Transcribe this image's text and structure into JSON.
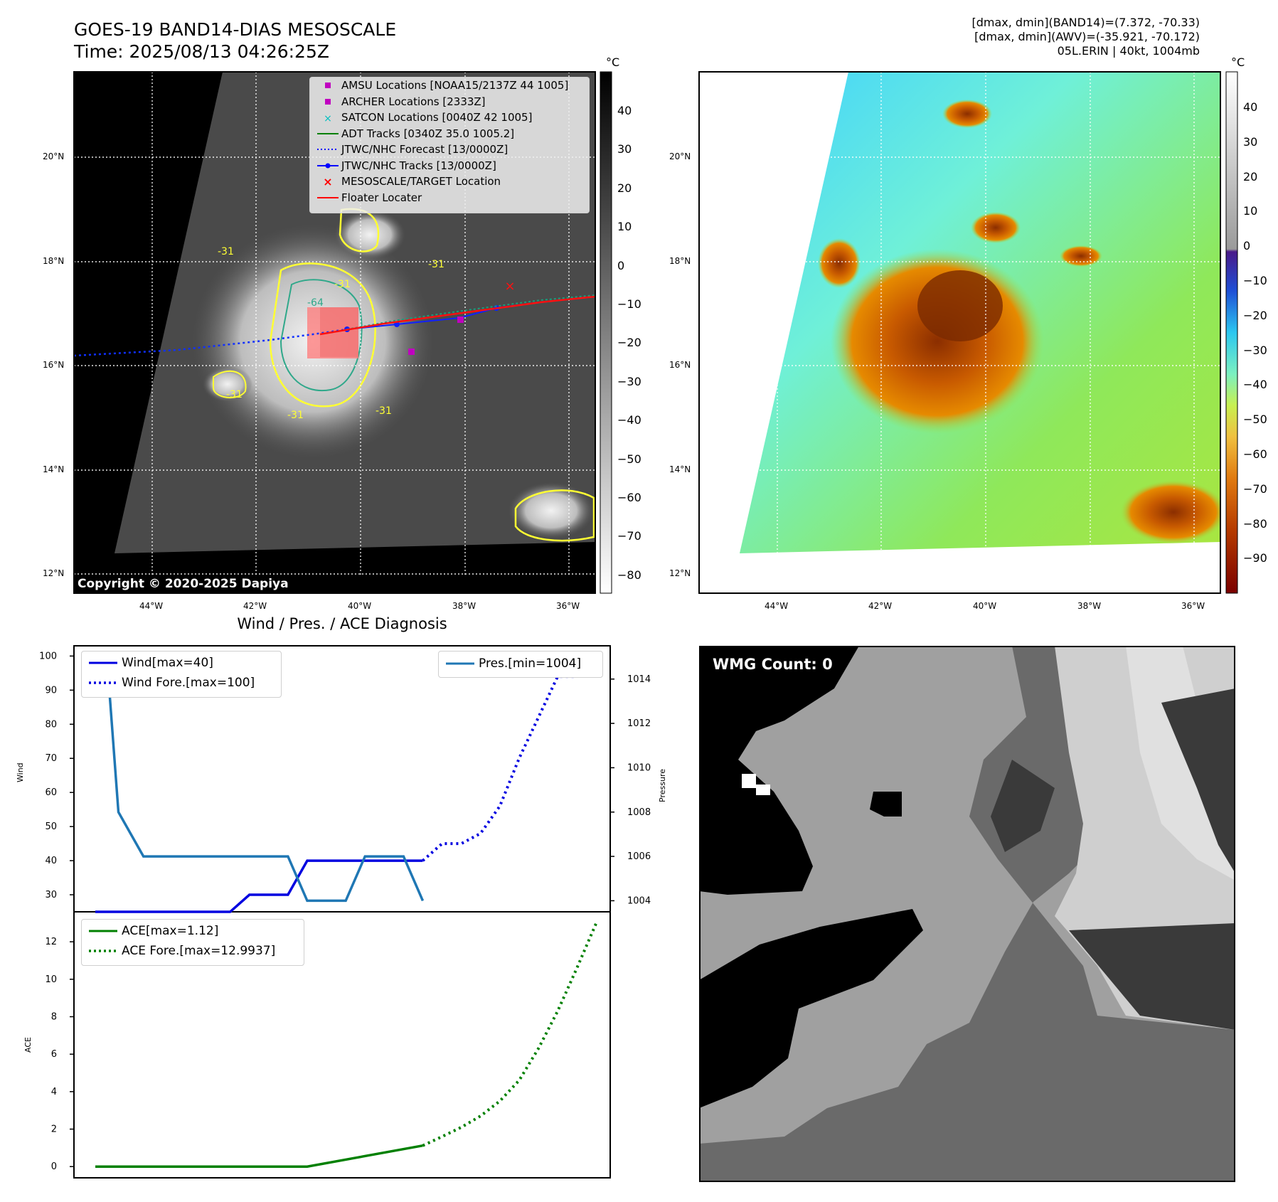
{
  "header": {
    "title_line1": "GOES-19 BAND14-DIAS MESOSCALE",
    "title_line2": "Time: 2025/08/13 04:26:25Z",
    "info_line1": "[dmax, dmin](BAND14)=(7.372, -70.33)",
    "info_line2": "[dmax, dmin](AWV)=(-35.921, -70.172)",
    "info_line3": "05L.ERIN | 40kt, 1004mb"
  },
  "maps": {
    "lat_labels": [
      "20°N",
      "18°N",
      "16°N",
      "14°N",
      "12°N"
    ],
    "lon_labels": [
      "44°W",
      "42°W",
      "40°W",
      "38°W",
      "36°W"
    ],
    "copyright": "Copyright © 2020-2025 Dapiya",
    "contour_labels": [
      "-31",
      "-64",
      "-31",
      "-31",
      "-31",
      "-31",
      "-31"
    ],
    "colorbar_left": {
      "unit": "°C",
      "ticks": [
        "40",
        "30",
        "20",
        "10",
        "0",
        "−10",
        "−20",
        "−30",
        "−40",
        "−50",
        "−60",
        "−70",
        "−80"
      ]
    },
    "colorbar_right": {
      "unit": "°C",
      "ticks": [
        "40",
        "30",
        "20",
        "10",
        "0",
        "−10",
        "−20",
        "−30",
        "−40",
        "−50",
        "−60",
        "−70",
        "−80",
        "−90"
      ]
    },
    "legend": [
      {
        "label": "AMSU Locations [NOAA15/2137Z 44 1005]",
        "symbol": "magenta-square-icon",
        "color": "#c000c0"
      },
      {
        "label": "ARCHER Locations [2333Z]",
        "symbol": "magenta-square-icon",
        "color": "#c000c0"
      },
      {
        "label": "SATCON Locations [0040Z 42 1005]",
        "symbol": "cyan-x-icon",
        "color": "#00bfbf"
      },
      {
        "label": "ADT Tracks [0340Z 35.0 1005.2]",
        "symbol": "green-line-icon",
        "color": "#008000"
      },
      {
        "label": "JTWC/NHC Forecast [13/0000Z]",
        "symbol": "blue-dotted-line-icon",
        "color": "#0000ff"
      },
      {
        "label": "JTWC/NHC Tracks [13/0000Z]",
        "symbol": "blue-line-dot-icon",
        "color": "#0000ff"
      },
      {
        "label": "MESOSCALE/TARGET Location",
        "symbol": "red-x-icon",
        "color": "#ff0000"
      },
      {
        "label": "Floater Locater",
        "symbol": "red-line-icon",
        "color": "#ff0000"
      }
    ]
  },
  "wmg": {
    "label": "WMG Count: 0"
  },
  "chart_data": [
    {
      "type": "line",
      "title": "Wind / Pres. / ACE Diagnosis",
      "ylabel": "Wind",
      "ylabel_right": "Pressure",
      "ylim": [
        25,
        103
      ],
      "yticks": [
        100,
        90,
        80,
        70,
        60,
        50,
        40,
        30
      ],
      "ylim_right": [
        1003.5,
        1015.5
      ],
      "yticks_right": [
        1014,
        1012,
        1010,
        1008,
        1006,
        1004
      ],
      "x_index_range": [
        0,
        21
      ],
      "legend_left": [
        "Wind[max=40]",
        "Wind Fore.[max=100]"
      ],
      "legend_right": [
        "Pres.[min=1004]"
      ],
      "series": [
        {
          "name": "Wind[max=40]",
          "color": "#0000e0",
          "axis": "left",
          "style": "solid",
          "x": [
            0,
            1,
            2,
            3,
            4,
            5,
            6,
            7,
            8,
            9,
            10,
            11,
            12,
            13,
            14,
            15,
            16,
            17
          ],
          "y": [
            25,
            25,
            25,
            25,
            25,
            25,
            25,
            25,
            30,
            30,
            30,
            40,
            40,
            40,
            40,
            40,
            40,
            40
          ]
        },
        {
          "name": "Wind Fore.[max=100]",
          "color": "#0000e0",
          "axis": "left",
          "style": "dotted",
          "x": [
            17,
            18,
            19,
            20,
            21,
            22,
            23,
            24,
            25,
            26
          ],
          "y": [
            40,
            45,
            45,
            48,
            56,
            70,
            82,
            94,
            94,
            100
          ]
        },
        {
          "name": "Pres.[min=1004]",
          "color": "#1f77b4",
          "axis": "right",
          "style": "solid",
          "x": [
            0,
            0.6,
            1.2,
            2.5,
            3,
            9,
            10,
            11,
            12,
            13,
            14,
            14.5,
            15,
            16,
            17
          ],
          "y": [
            1015,
            1015,
            1008,
            1006,
            1006,
            1006,
            1006,
            1004,
            1004,
            1004,
            1006,
            1006,
            1006,
            1006,
            1004
          ]
        }
      ]
    },
    {
      "type": "line",
      "ylabel": "ACE",
      "ylim": [
        -0.6,
        13.6
      ],
      "yticks": [
        12,
        10,
        8,
        6,
        4,
        2,
        0
      ],
      "legend": [
        "ACE[max=1.12]",
        "ACE Fore.[max=12.9937]"
      ],
      "series": [
        {
          "name": "ACE[max=1.12]",
          "color": "#008000",
          "style": "solid",
          "x": [
            0,
            11,
            17
          ],
          "y": [
            0,
            0,
            1.12
          ]
        },
        {
          "name": "ACE Fore.[max=12.9937]",
          "color": "#008000",
          "style": "dotted",
          "x": [
            17,
            18,
            19,
            20,
            21,
            22,
            23,
            24,
            25,
            26
          ],
          "y": [
            1.12,
            1.6,
            2.1,
            2.7,
            3.5,
            4.6,
            6.3,
            8.3,
            10.6,
            12.99
          ]
        }
      ]
    }
  ]
}
